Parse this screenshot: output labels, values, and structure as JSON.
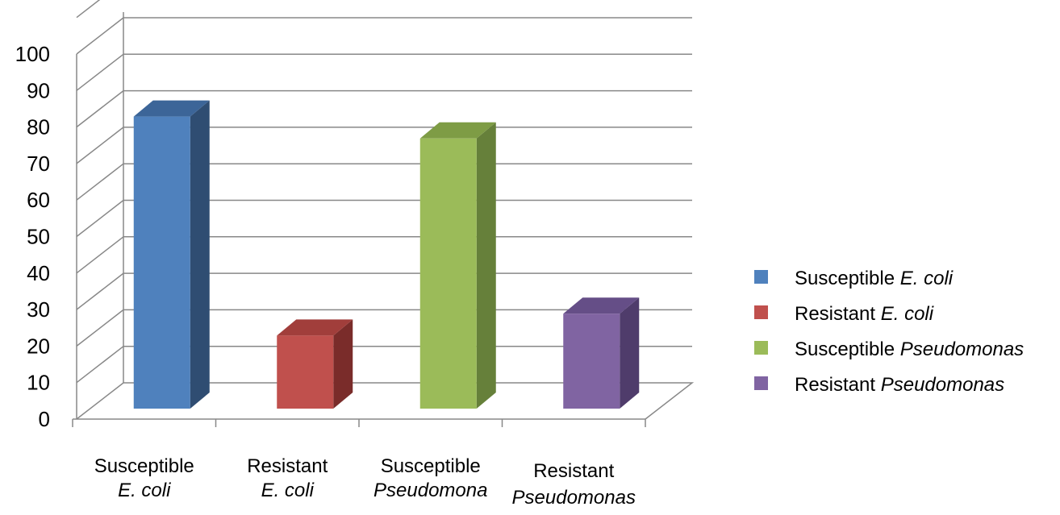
{
  "chart_data": {
    "type": "bar",
    "categories": [
      {
        "line1": "Susceptible",
        "line2": "E. coli"
      },
      {
        "line1": "Resistant",
        "line2": "E. coli"
      },
      {
        "line1": "Susceptible",
        "line2": "Pseudomona"
      },
      {
        "line1": "Resistant",
        "line2": "Pseudomonas"
      }
    ],
    "values": [
      80,
      20,
      74,
      26
    ],
    "ylim": [
      0,
      100
    ],
    "yticks": [
      0,
      10,
      20,
      30,
      40,
      50,
      60,
      70,
      80,
      90,
      100
    ],
    "grid": true,
    "legend_position": "right",
    "legend": [
      {
        "prefix": "Susceptible ",
        "italic": "E. coli",
        "color": "#4F81BD"
      },
      {
        "prefix": "Resistant ",
        "italic": "E. coli",
        "color": "#C0504D"
      },
      {
        "prefix": "Susceptible ",
        "italic": "Pseudomonas",
        "color": "#9BBB59"
      },
      {
        "prefix": "Resistant ",
        "italic": "Pseudomonas",
        "color": "#8064A2"
      }
    ],
    "colors": {
      "front": [
        "#4F81BD",
        "#C0504D",
        "#9BBB59",
        "#8064A2"
      ],
      "side": [
        "#2F4D72",
        "#7A2C2A",
        "#66803A",
        "#4F3C6B"
      ],
      "top": [
        "#3C6598",
        "#A13E3B",
        "#7E9C45",
        "#654E87"
      ]
    }
  }
}
